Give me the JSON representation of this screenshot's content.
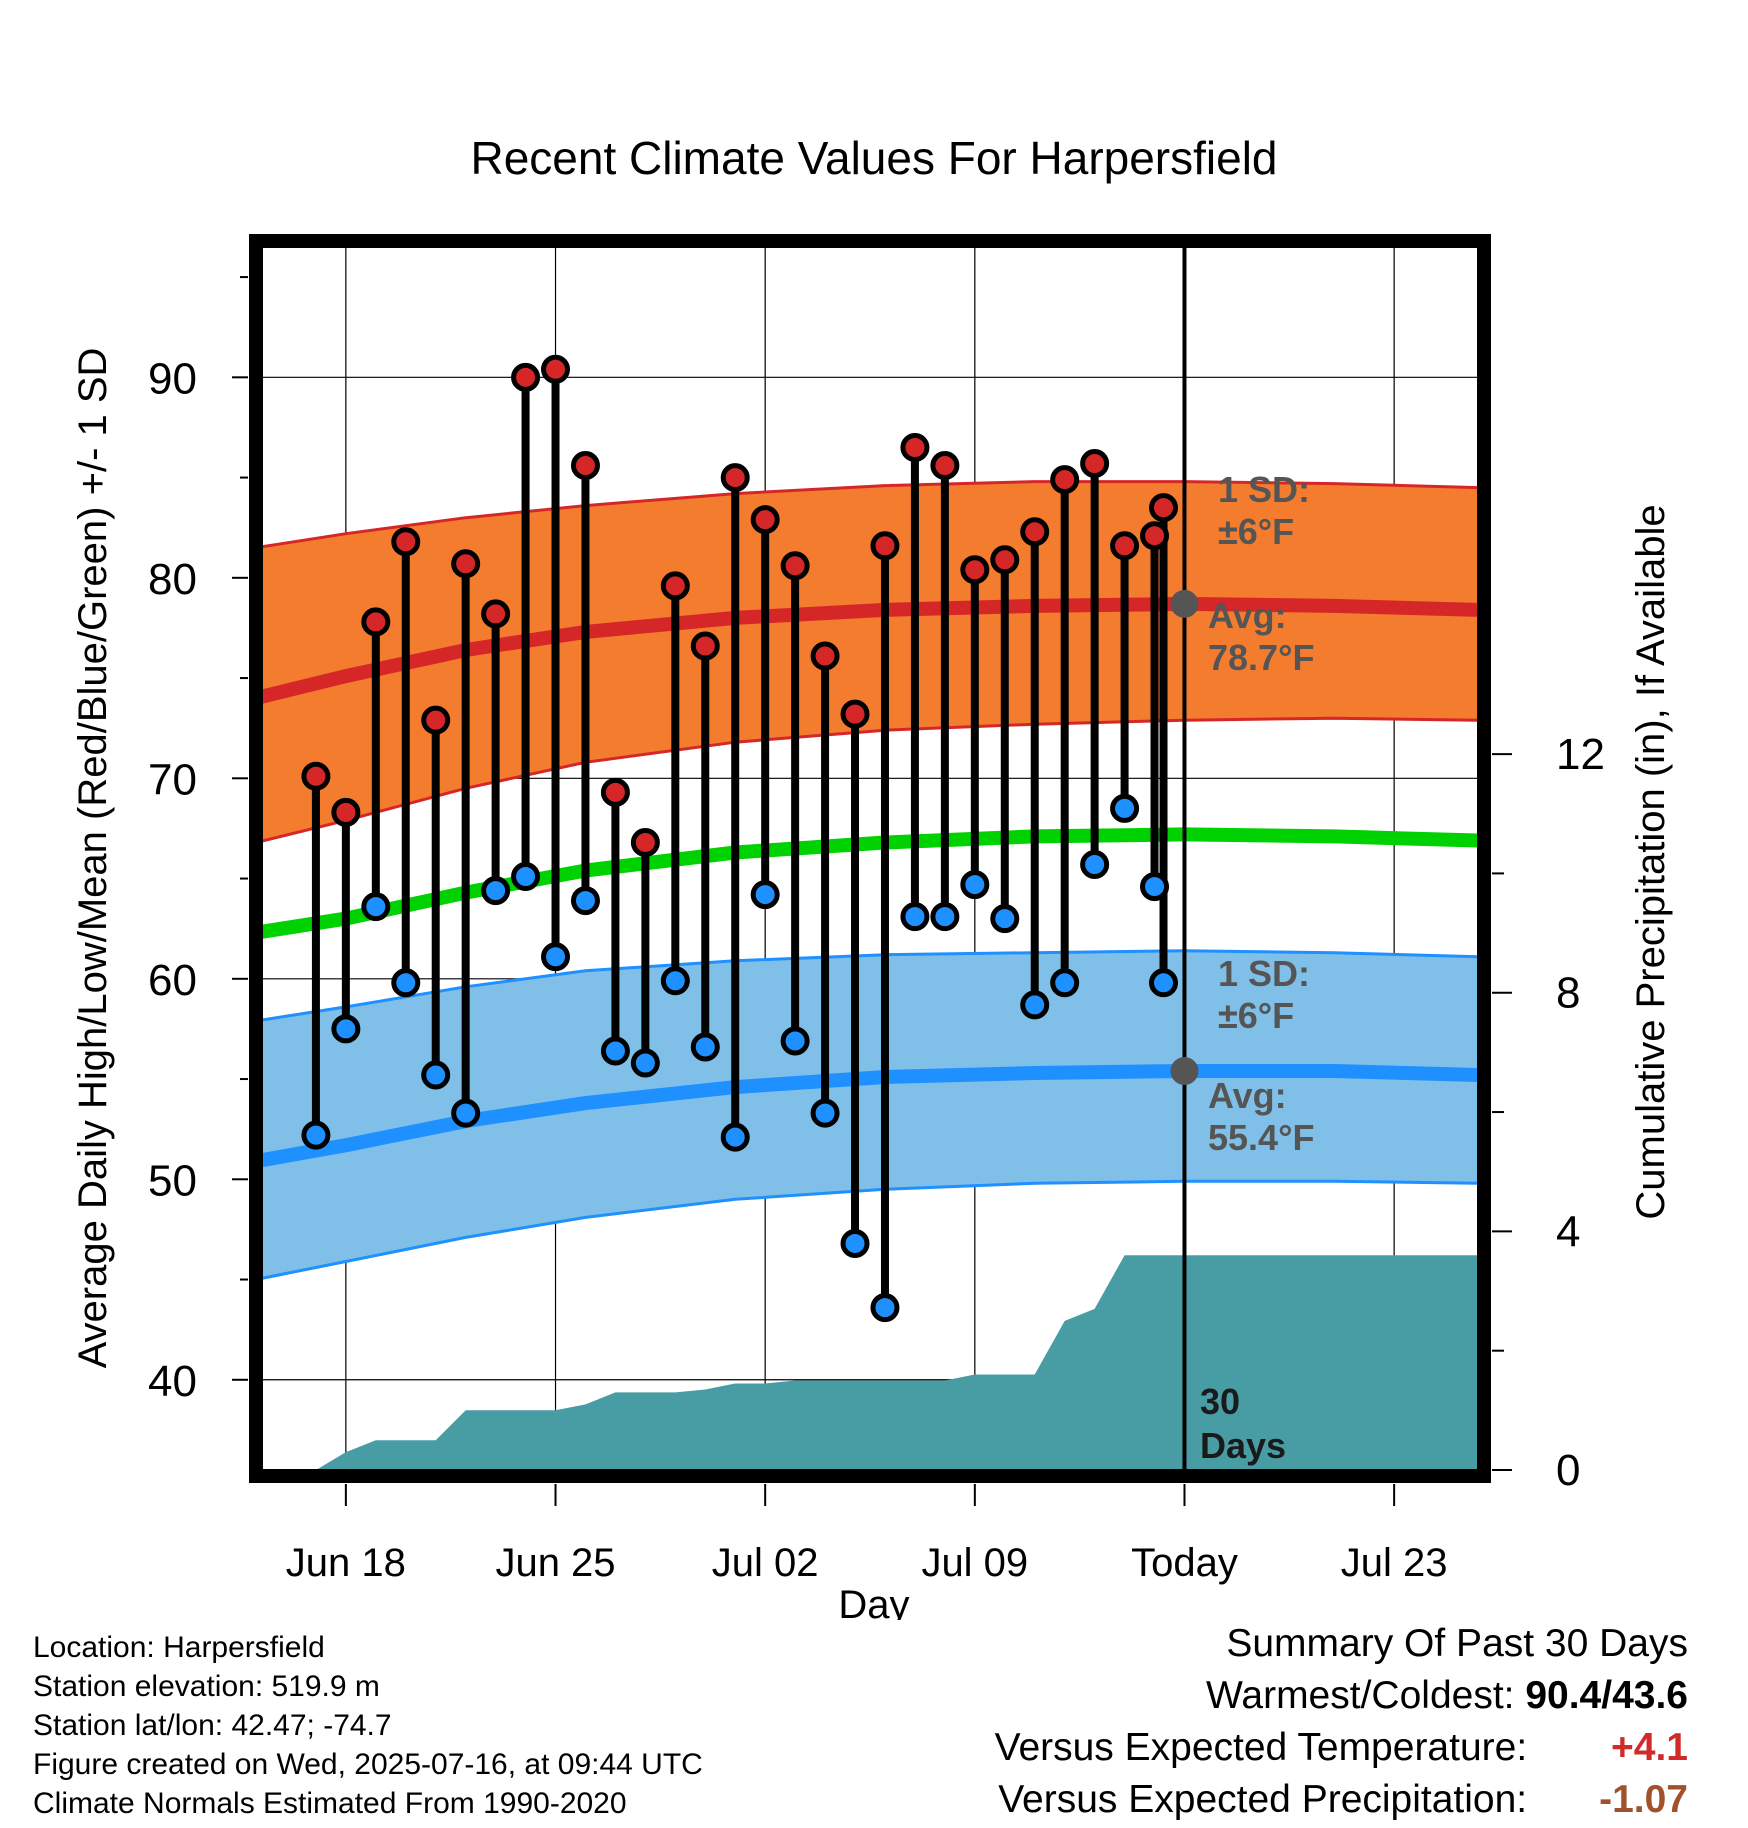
{
  "chart_data": {
    "type": "line",
    "title": "Recent Climate Values For Harpersfield",
    "xlabel": "Day",
    "ylabel": "Average Daily High/Low/Mean (Red/Blue/Green) +/- 1 SD",
    "y2label": "Cumulative Precipitation (in), If Available",
    "ylim": [
      35.5,
      96.5
    ],
    "y2lim": [
      0,
      20.5
    ],
    "xlim": [
      -0.8,
      39.8
    ],
    "yticks": [
      40,
      50,
      60,
      70,
      80,
      90
    ],
    "y2ticks": [
      0,
      4,
      8,
      12
    ],
    "x_ticks": [
      {
        "day": 2,
        "label": "Jun 18"
      },
      {
        "day": 9,
        "label": "Jun 25"
      },
      {
        "day": 16,
        "label": "Jul 02"
      },
      {
        "day": 23,
        "label": "Jul 09"
      },
      {
        "day": 30,
        "label": "Today"
      },
      {
        "day": 37,
        "label": "Jul 23"
      }
    ],
    "grid": true,
    "days": [
      -1,
      2,
      6,
      10,
      15,
      20,
      25,
      30,
      35,
      39.8
    ],
    "normal_high": [
      74.0,
      75.1,
      76.4,
      77.3,
      78.0,
      78.4,
      78.6,
      78.7,
      78.6,
      78.4
    ],
    "normal_high_upper": [
      81.5,
      82.2,
      83.0,
      83.6,
      84.2,
      84.6,
      84.8,
      84.8,
      84.7,
      84.5
    ],
    "normal_high_lower": [
      66.8,
      67.9,
      69.5,
      70.8,
      71.8,
      72.4,
      72.7,
      72.9,
      73.0,
      72.9
    ],
    "normal_mean": [
      62.3,
      63.0,
      64.3,
      65.4,
      66.3,
      66.8,
      67.1,
      67.2,
      67.1,
      66.9
    ],
    "normal_low": [
      50.9,
      51.7,
      52.9,
      53.8,
      54.6,
      55.1,
      55.3,
      55.4,
      55.4,
      55.2
    ],
    "normal_low_upper": [
      57.9,
      58.6,
      59.6,
      60.4,
      60.9,
      61.2,
      61.3,
      61.4,
      61.3,
      61.1
    ],
    "normal_low_lower": [
      45.0,
      45.9,
      47.1,
      48.1,
      49.0,
      49.5,
      49.8,
      49.9,
      49.9,
      49.8
    ],
    "obs_days": [
      1,
      2,
      3,
      4,
      5,
      6,
      7,
      8,
      9,
      10,
      11,
      12,
      13,
      14,
      15,
      16,
      17,
      18,
      19,
      20,
      21,
      22,
      23,
      24,
      25,
      26,
      27,
      28,
      29
    ],
    "obs_high": [
      70.1,
      68.3,
      77.8,
      81.8,
      72.9,
      80.7,
      78.2,
      90.0,
      90.4,
      85.6,
      69.3,
      66.8,
      79.6,
      76.6,
      85.0,
      82.9,
      80.6,
      76.1,
      73.2,
      81.6,
      86.5,
      85.6,
      80.4,
      80.9,
      82.3,
      84.9,
      85.7,
      81.6,
      82.1
    ],
    "obs_low": [
      52.2,
      57.5,
      63.6,
      59.8,
      55.2,
      53.3,
      64.4,
      65.1,
      61.1,
      63.9,
      56.4,
      55.8,
      59.9,
      56.6,
      52.1,
      64.2,
      56.9,
      53.3,
      46.8,
      43.6,
      63.1,
      63.1,
      64.7,
      63.0,
      58.7,
      59.8,
      65.7,
      68.5,
      64.6
    ],
    "obs_high_day30": 83.5,
    "obs_low_day30": 59.8,
    "precip_days": [
      0,
      1,
      2,
      3,
      4,
      5,
      6,
      7,
      8,
      9,
      10,
      11,
      12,
      13,
      14,
      15,
      16,
      17,
      18,
      19,
      20,
      21,
      22,
      23,
      24,
      25,
      26,
      27,
      28,
      29,
      30,
      39.8
    ],
    "precip_cumulative": [
      0,
      0,
      0.3,
      0.5,
      0.5,
      0.5,
      1.0,
      1.0,
      1.0,
      1.0,
      1.1,
      1.3,
      1.3,
      1.3,
      1.35,
      1.45,
      1.45,
      1.5,
      1.5,
      1.5,
      1.5,
      1.5,
      1.5,
      1.6,
      1.6,
      1.6,
      2.5,
      2.7,
      3.6,
      3.6,
      3.6,
      3.6
    ],
    "annotations": {
      "high_sd": {
        "line1": "1 SD:",
        "line2": "±6°F"
      },
      "high_avg": {
        "line1": "Avg:",
        "line2": "78.7°F",
        "value": 78.7
      },
      "low_sd": {
        "line1": "1 SD:",
        "line2": "±6°F"
      },
      "low_avg": {
        "line1": "Avg:",
        "line2": "55.4°F",
        "value": 55.4
      },
      "period": {
        "line1": "30",
        "line2": "Days"
      }
    },
    "colors": {
      "high_band": "#f47c2f",
      "high_line": "#d62728",
      "mean_line": "#00d100",
      "low_band": "#80c0e8",
      "low_line": "#1e90ff",
      "precip": "#489da5",
      "annotation": "#555555"
    }
  },
  "info": {
    "location": "Location: Harpersfield",
    "elevation": "Station elevation: 519.9 m",
    "latlon": "Station lat/lon: 42.47; -74.7",
    "created": "Figure created on Wed, 2025-07-16, at 09:44 UTC",
    "normals": "Climate Normals Estimated From 1990-2020"
  },
  "summary": {
    "title": "Summary Of Past 30 Days",
    "warm_label": "Warmest/Coldest:",
    "warm_value": "90.4/43.6",
    "temp_label": "Versus Expected Temperature:",
    "temp_value": "+4.1",
    "precip_label": "Versus Expected Precipitation:",
    "precip_value": "-1.07"
  }
}
